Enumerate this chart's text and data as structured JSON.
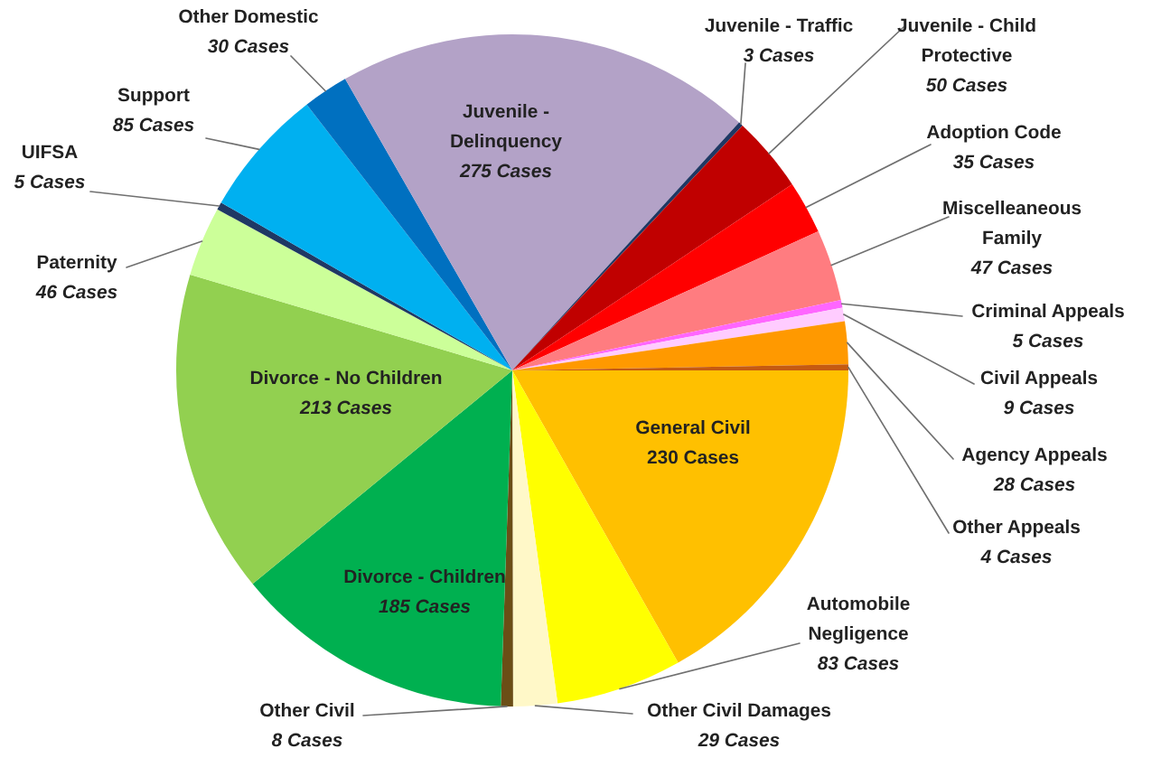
{
  "chart_data": {
    "type": "pie",
    "categories": [
      "General Civil",
      "Automobile Negligence",
      "Other Civil Damages",
      "Other Civil",
      "Divorce - Children",
      "Divorce - No Children",
      "Paternity",
      "UIFSA",
      "Support",
      "Other Domestic",
      "Juvenile - Delinquency",
      "Juvenile - Traffic",
      "Juvenile - Child Protective",
      "Adoption Code",
      "Miscelleaneous Family",
      "Criminal Appeals",
      "Civil Appeals",
      "Agency Appeals",
      "Other Appeals"
    ],
    "values": [
      230,
      83,
      29,
      8,
      185,
      213,
      46,
      5,
      85,
      30,
      275,
      3,
      50,
      35,
      47,
      5,
      9,
      28,
      4
    ],
    "value_labels": [
      "230 Cases",
      "83 Cases",
      "29 Cases",
      "8 Cases",
      "185 Cases",
      "213 Cases",
      "46 Cases",
      "5 Cases",
      "85 Cases",
      "30 Cases",
      "275 Cases",
      "3 Cases",
      "50 Cases",
      "35 Cases",
      "47 Cases",
      "5 Cases",
      "9 Cases",
      "28 Cases",
      "4 Cases"
    ],
    "colors": [
      "#ffc000",
      "#ffff00",
      "#fff8c8",
      "#6b4e16",
      "#00b050",
      "#92d050",
      "#ccff99",
      "#1f3864",
      "#00b0f0",
      "#0070c0",
      "#b3a2c7",
      "#1f3864",
      "#c00000",
      "#ff0000",
      "#ff7c80",
      "#ff66ff",
      "#ffccff",
      "#ff9900",
      "#c55a11"
    ]
  }
}
